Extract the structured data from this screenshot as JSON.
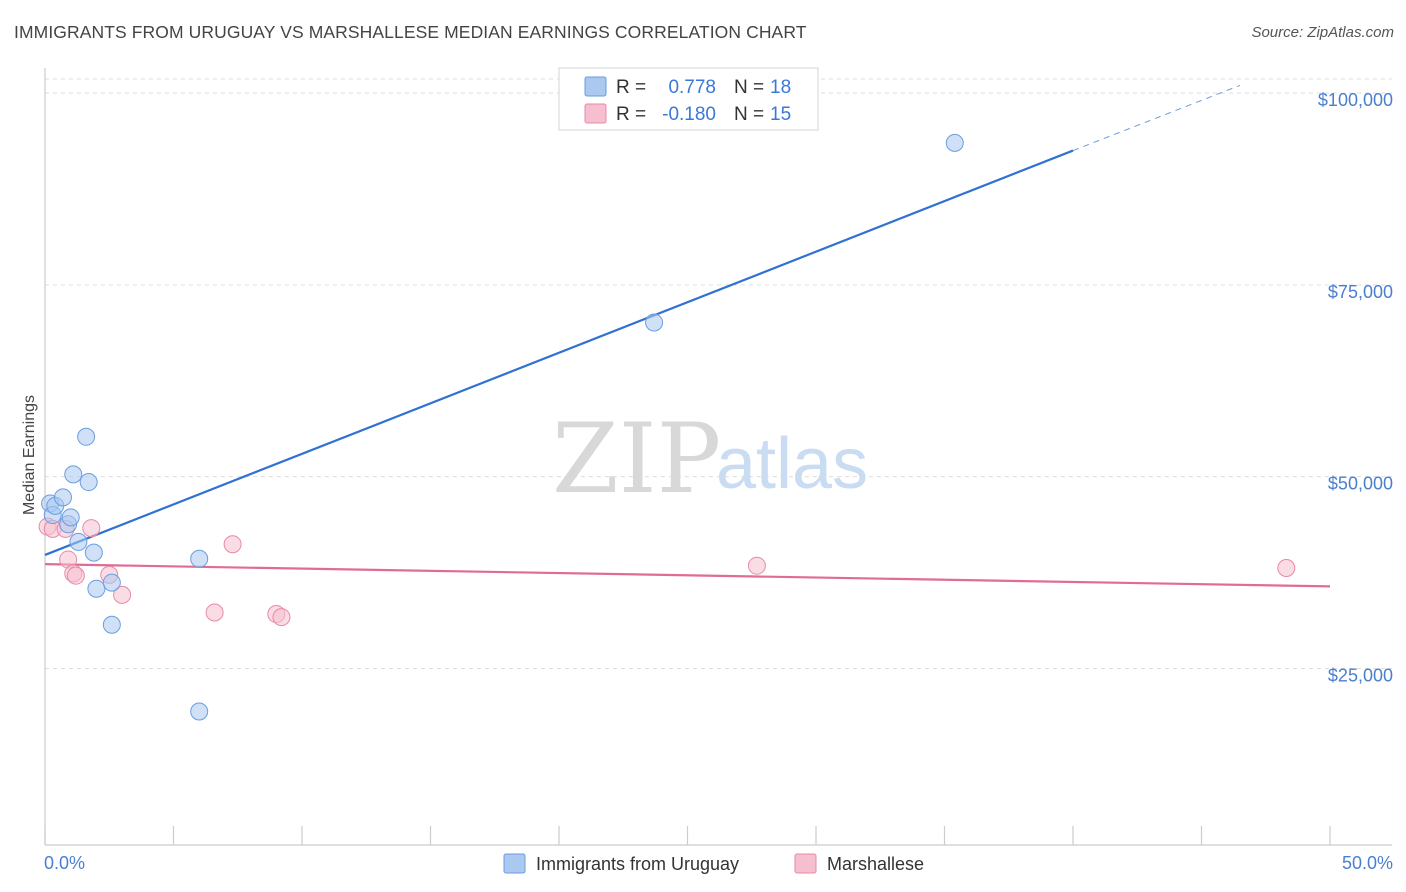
{
  "title": "IMMIGRANTS FROM URUGUAY VS MARSHALLESE MEDIAN EARNINGS CORRELATION CHART",
  "source": "Source: ZipAtlas.com",
  "watermark": {
    "zip": "ZIP",
    "atlas": "atlas"
  },
  "colors": {
    "series1_fill": "#aac8f0",
    "series1_stroke": "#6a9de0",
    "series1_line": "#2f72d2",
    "series2_fill": "#f6bfd0",
    "series2_stroke": "#e88aa8",
    "series2_line": "#e06b96",
    "grid": "#dddddd",
    "axis_text": "#4a7fd0"
  },
  "legend": {
    "rows": [
      {
        "r_label": "R =",
        "r_value": "0.778",
        "n_label": "N =",
        "n_value": "18"
      },
      {
        "r_label": "R =",
        "r_value": "-0.180",
        "n_label": "N =",
        "n_value": "15"
      }
    ]
  },
  "bottom_legend": [
    "Immigrants from Uruguay",
    "Marshallese"
  ],
  "chart_data": {
    "type": "scatter",
    "title": "IMMIGRANTS FROM URUGUAY VS MARSHALLESE MEDIAN EARNINGS CORRELATION CHART",
    "xlabel": "",
    "ylabel": "Median Earnings",
    "xlim": [
      0,
      50
    ],
    "ylim": [
      2000,
      103000
    ],
    "x_tick_labels": [
      "0.0%",
      "50.0%"
    ],
    "y_ticks": [
      25000,
      50000,
      75000,
      100000
    ],
    "y_tick_labels": [
      "$25,000",
      "$50,000",
      "$75,000",
      "$100,000"
    ],
    "grid": true,
    "series": [
      {
        "name": "Immigrants from Uruguay",
        "points": [
          [
            0.2,
            46500
          ],
          [
            0.3,
            45000
          ],
          [
            0.4,
            46200
          ],
          [
            0.7,
            47300
          ],
          [
            0.9,
            43800
          ],
          [
            1.0,
            44700
          ],
          [
            1.1,
            50300
          ],
          [
            1.3,
            41500
          ],
          [
            1.6,
            55200
          ],
          [
            1.7,
            49300
          ],
          [
            1.9,
            40100
          ],
          [
            2.0,
            35400
          ],
          [
            2.6,
            30700
          ],
          [
            2.6,
            36200
          ],
          [
            6.0,
            39300
          ],
          [
            6.0,
            19400
          ],
          [
            23.7,
            70100
          ],
          [
            35.4,
            93500
          ]
        ],
        "trend": {
          "x": [
            0,
            40
          ],
          "y": [
            39800,
            92500
          ],
          "dashed_to": {
            "x": 46.5,
            "y": 101000
          }
        }
      },
      {
        "name": "Marshallese",
        "points": [
          [
            0.1,
            43500
          ],
          [
            0.3,
            43200
          ],
          [
            0.8,
            43200
          ],
          [
            0.9,
            39200
          ],
          [
            1.1,
            37400
          ],
          [
            1.2,
            37100
          ],
          [
            1.8,
            43300
          ],
          [
            2.5,
            37200
          ],
          [
            3.0,
            34600
          ],
          [
            6.6,
            32300
          ],
          [
            7.3,
            41200
          ],
          [
            9.0,
            32100
          ],
          [
            9.2,
            31700
          ],
          [
            27.7,
            38400
          ],
          [
            48.3,
            38100
          ]
        ],
        "trend": {
          "x": [
            0,
            50
          ],
          "y": [
            38600,
            35700
          ]
        }
      }
    ]
  }
}
